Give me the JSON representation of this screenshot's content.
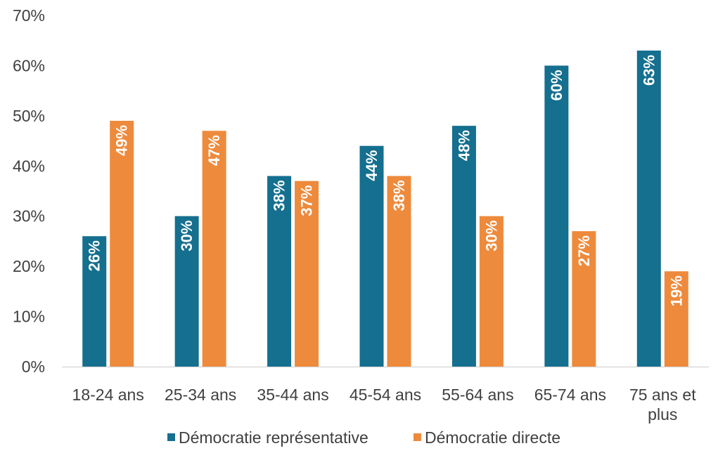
{
  "chart_data": {
    "type": "bar",
    "title": "",
    "xlabel": "",
    "ylabel": "",
    "categories": [
      [
        "18-24 ans"
      ],
      [
        "25-34 ans"
      ],
      [
        "35-44 ans"
      ],
      [
        "45-54 ans"
      ],
      [
        "55-64 ans"
      ],
      [
        "65-74 ans"
      ],
      [
        "75 ans et",
        "plus"
      ]
    ],
    "series": [
      {
        "name": "Démocratie représentative",
        "color": "#156f8f",
        "values": [
          26,
          30,
          38,
          44,
          48,
          60,
          63
        ],
        "labels": [
          "26%",
          "30%",
          "38%",
          "44%",
          "48%",
          "60%",
          "63%"
        ]
      },
      {
        "name": "Démocratie directe",
        "color": "#ee8a3c",
        "values": [
          49,
          47,
          37,
          38,
          30,
          27,
          19
        ],
        "labels": [
          "49%",
          "47%",
          "37%",
          "38%",
          "30%",
          "27%",
          "19%"
        ]
      }
    ],
    "ylim": [
      0,
      70
    ],
    "yticks": [
      0,
      10,
      20,
      30,
      40,
      50,
      60,
      70
    ],
    "ytick_labels": [
      "0%",
      "10%",
      "20%",
      "30%",
      "40%",
      "50%",
      "60%",
      "70%"
    ],
    "grid": false,
    "legend_position": "bottom-center",
    "axis_color": "#d9d9d9"
  }
}
